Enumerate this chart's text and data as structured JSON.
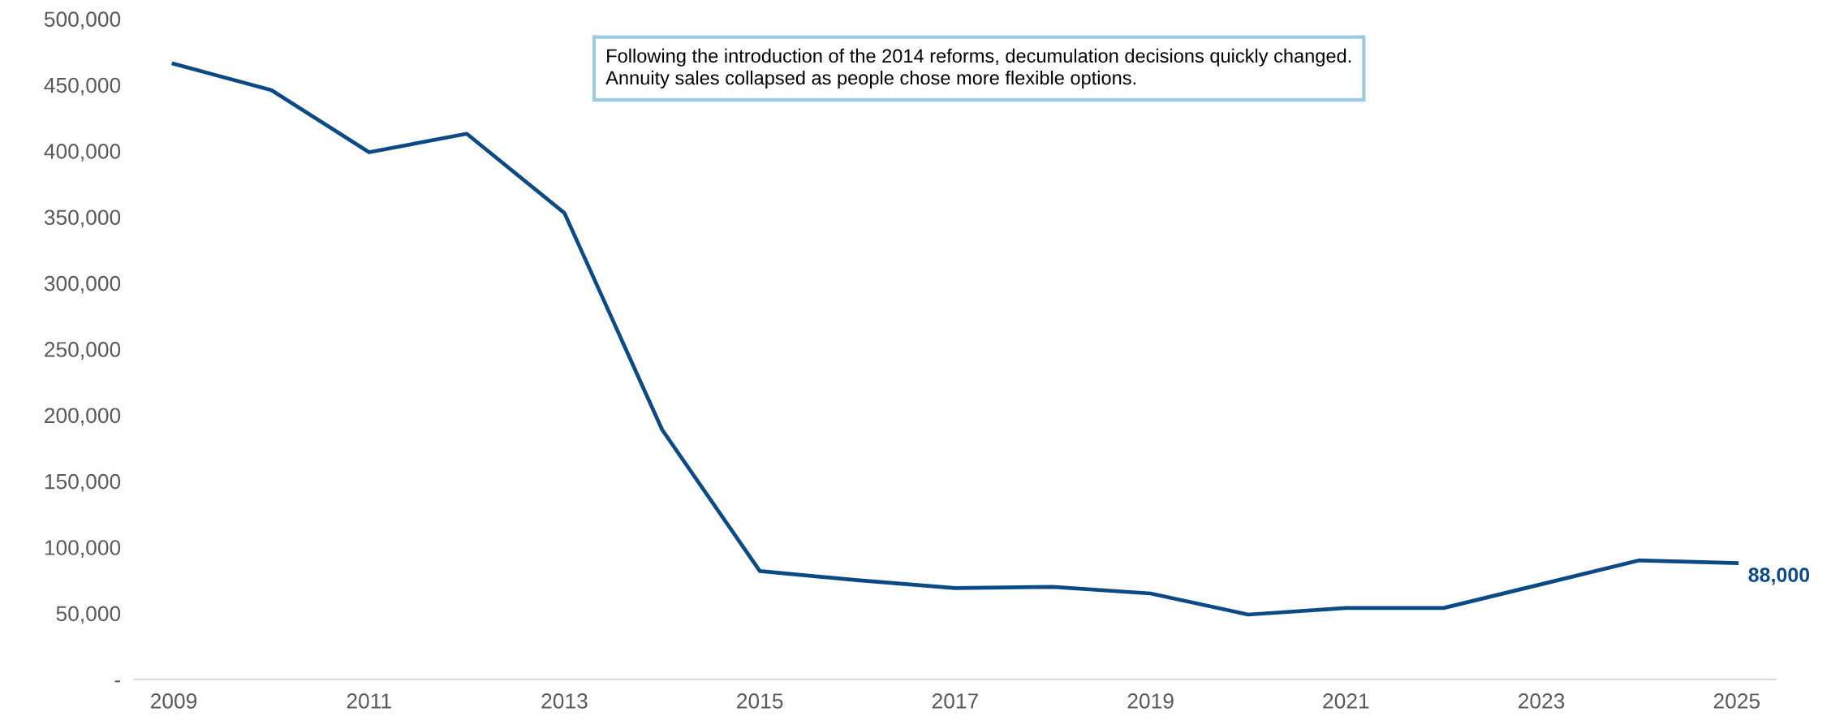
{
  "chart_data": {
    "type": "line",
    "x": [
      2009,
      2010,
      2011,
      2012,
      2013,
      2014,
      2015,
      2016,
      2017,
      2018,
      2019,
      2020,
      2021,
      2022,
      2023,
      2024,
      2025
    ],
    "series": [
      {
        "color": "#0b4a84",
        "values": [
          466000,
          446000,
          399000,
          413000,
          353000,
          189000,
          82000,
          75000,
          69000,
          70000,
          65000,
          49000,
          54000,
          54000,
          72000,
          90000,
          88000
        ],
        "value_labels": [
          null,
          null,
          null,
          null,
          null,
          null,
          null,
          null,
          null,
          null,
          null,
          null,
          null,
          null,
          null,
          null,
          "88,000"
        ]
      }
    ],
    "xlim": [
      2008.6,
      2025.4
    ],
    "xticks": [
      2009,
      2011,
      2013,
      2015,
      2017,
      2019,
      2021,
      2023,
      2025
    ],
    "ylim": [
      0,
      500000
    ],
    "yticks": [
      {
        "value": 0,
        "label": "-"
      },
      {
        "value": 50000,
        "label": "50,000"
      },
      {
        "value": 100000,
        "label": "100,000"
      },
      {
        "value": 150000,
        "label": "150,000"
      },
      {
        "value": 200000,
        "label": "200,000"
      },
      {
        "value": 250000,
        "label": "250,000"
      },
      {
        "value": 300000,
        "label": "300,000"
      },
      {
        "value": 350000,
        "label": "350,000"
      },
      {
        "value": 400000,
        "label": "400,000"
      },
      {
        "value": 450000,
        "label": "450,000"
      },
      {
        "value": 500000,
        "label": "500,000"
      }
    ],
    "annotations": [
      "Following the introduction of the 2014 reforms, decumulation decisions quickly changed.\nAnnuity sales collapsed as people chose more flexible options."
    ],
    "grid": false,
    "legend": false,
    "marker": "none",
    "line_style": "solid"
  }
}
